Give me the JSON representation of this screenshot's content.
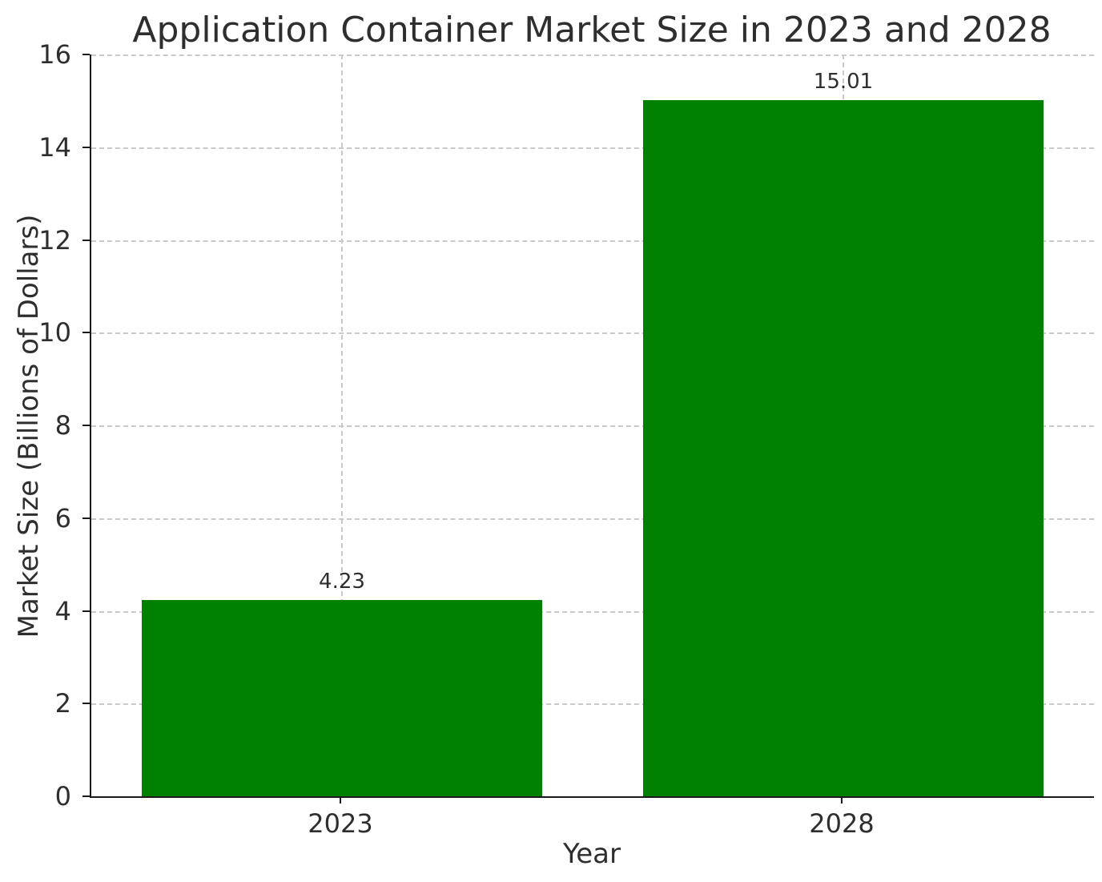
{
  "chart_data": {
    "type": "bar",
    "title": "Application Container Market Size in 2023 and 2028",
    "xlabel": "Year",
    "ylabel": "Market Size (Billions of Dollars)",
    "categories": [
      "2023",
      "2028"
    ],
    "values": [
      4.23,
      15.01
    ],
    "value_labels": [
      "4.23",
      "15.01"
    ],
    "bar_color": "#008000",
    "ylim": [
      0,
      16
    ],
    "yticks": [
      0,
      2,
      4,
      6,
      8,
      10,
      12,
      14,
      16
    ],
    "grid": true,
    "grid_style": "dashed",
    "grid_color": "#c9c9c9",
    "text_color": "#2e2e2e",
    "bar_width_fraction": 0.8,
    "legend": "none"
  }
}
